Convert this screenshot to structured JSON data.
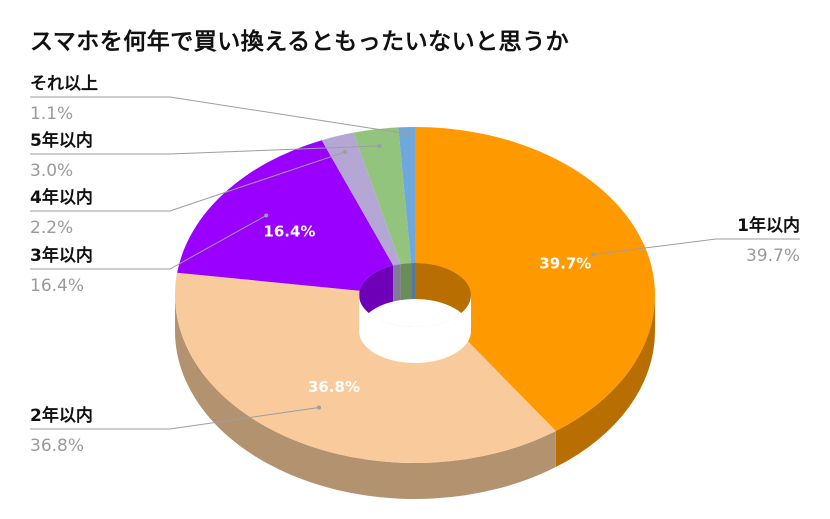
{
  "chart_data": {
    "type": "pie",
    "title": "スマホを何年で買い換えるともったいないと思うか",
    "categories": [
      "1年以内",
      "2年以内",
      "3年以内",
      "4年以内",
      "5年以内",
      "それ以上"
    ],
    "values": [
      39.7,
      36.8,
      16.4,
      2.2,
      3.0,
      1.1
    ],
    "value_labels": [
      "39.7%",
      "36.8%",
      "16.4%",
      "2.2%",
      "3.0%",
      "1.1%"
    ],
    "inside_labels": [
      "39.7%",
      "36.8%",
      "16.4%",
      "",
      "",
      ""
    ],
    "colors": [
      "#ff9900",
      "#f9cb9c",
      "#9900ff",
      "#b4a7d6",
      "#93c47d",
      "#6fa8dc"
    ],
    "legend_position": "outside labels with leader lines"
  }
}
